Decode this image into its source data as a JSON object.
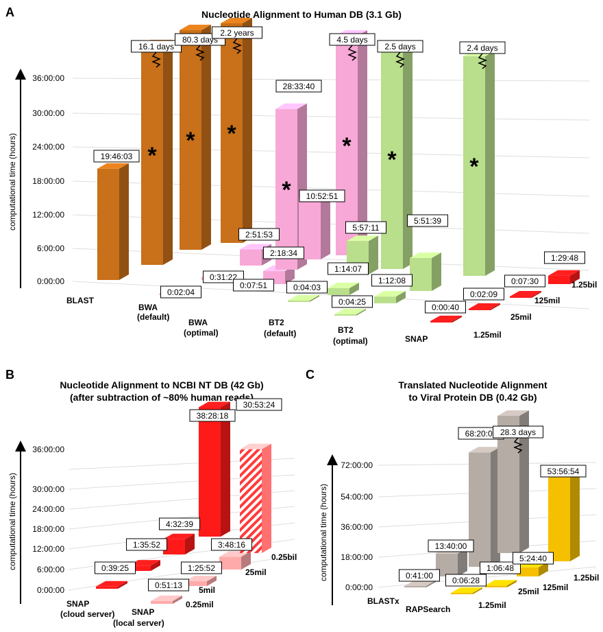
{
  "panels": [
    {
      "letter": "A",
      "title": "Nucleotide Alignment to Human DB (3.1 Gb)",
      "ylabel": "computational time (hours)",
      "yticks": [
        "0:00:00",
        "6:00:00",
        "12:00:00",
        "18:00:00",
        "24:00:00",
        "30:00:00",
        "36:00:00"
      ],
      "categories": [
        {
          "name": "BLAST",
          "sub": ""
        },
        {
          "name": "BWA",
          "sub": "(default)"
        },
        {
          "name": "BWA",
          "sub": "(optimal)"
        },
        {
          "name": "BT2",
          "sub": "(default)"
        },
        {
          "name": "BT2",
          "sub": "(optimal)"
        },
        {
          "name": "SNAP",
          "sub": ""
        }
      ],
      "depth_labels": [
        "1.25mil",
        "25mil",
        "125mil",
        "1.25bil"
      ]
    },
    {
      "letter": "B",
      "title_lines": [
        "Nucleotide Alignment to NCBI NT DB (42 Gb)",
        "(after subtraction of ~80% human reads)"
      ],
      "ylabel": "computational time (hours)",
      "yticks": [
        "0:00:00",
        "6:00:00",
        "12:00:00",
        "18:00:00",
        "24:00:00",
        "30:00:00",
        "36:00:00"
      ],
      "categories": [
        {
          "name": "SNAP",
          "sub": "(cloud server)"
        },
        {
          "name": "SNAP",
          "sub": "(local server)"
        }
      ],
      "depth_labels": [
        "0.25mil",
        "5mil",
        "25mil",
        "0.25bil"
      ]
    },
    {
      "letter": "C",
      "title_lines": [
        "Translated Nucleotide Alignment",
        "to Viral Protein DB (0.42 Gb)"
      ],
      "ylabel": "computational time (hours)",
      "yticks": [
        "0:00:00",
        "18:00:00",
        "36:00:00",
        "54:00:00",
        "72:00:00"
      ],
      "categories": [
        {
          "name": "BLASTx",
          "sub": ""
        },
        {
          "name": "RAPSearch",
          "sub": ""
        }
      ],
      "depth_labels": [
        "1.25mil",
        "25mil",
        "125mil",
        "1.25bil"
      ]
    }
  ],
  "colors": {
    "BLAST": "#c8701a",
    "BWA_default": "#f7a8d6",
    "BWA_optimal": "#f7a8d6",
    "BT2": "#f7a8d6",
    "SNAP": "#b9de8c",
    "SNAP_red": "#ff1a1a",
    "BLASTx": "#b5aca6",
    "RAPSearch": "#f5c000"
  },
  "chart_data": [
    {
      "type": "bar",
      "title": "Nucleotide Alignment to Human DB (3.1 Gb)",
      "ylabel": "computational time (hours)",
      "ylim": [
        0,
        36
      ],
      "bars": [
        {
          "method": "BLAST",
          "depth": "",
          "label": "19:46:03",
          "hours": 19.77,
          "color": "#c8701a"
        },
        {
          "method": "BWA (default)",
          "depth": "",
          "label": "16.1 days",
          "hours": 386.4,
          "broken": true,
          "star": true,
          "color": "#c8701a"
        },
        {
          "method": "BWA (optimal)",
          "depth": "",
          "label": "80.3 days",
          "hours": 1927.2,
          "broken": true,
          "star": true,
          "color": "#c8701a"
        },
        {
          "method": "BT2 (default)",
          "depth": "",
          "label": "2.2 years",
          "hours": 19272,
          "broken": true,
          "star": true,
          "color": "#c8701a"
        },
        {
          "method": "BWA (default)",
          "depth": "",
          "label": "0:02:04",
          "hours": 0.03,
          "color": "#f7a8d6"
        },
        {
          "method": "BWA (default)",
          "depth": "",
          "label": "0:31:22",
          "hours": 0.52,
          "color": "#f7a8d6"
        },
        {
          "method": "BWA (optimal)",
          "depth": "",
          "label": "0:07:51",
          "hours": 0.13,
          "color": "#f7a8d6"
        },
        {
          "method": "BWA (optimal)",
          "depth": "",
          "label": "2:51:53",
          "hours": 2.86,
          "color": "#f7a8d6"
        },
        {
          "method": "BT2 (default)",
          "depth": "",
          "label": "2:18:34",
          "hours": 2.31,
          "color": "#f7a8d6"
        },
        {
          "method": "BT2 (default)",
          "depth": "",
          "label": "28:33:40",
          "hours": 28.56,
          "star": true,
          "color": "#f7a8d6"
        },
        {
          "method": "BT2 (default)",
          "depth": "",
          "label": "10:52:51",
          "hours": 10.88,
          "color": "#f7a8d6"
        },
        {
          "method": "BT2 (optimal)",
          "depth": "",
          "label": "4.5 days",
          "hours": 108,
          "broken": true,
          "star": true,
          "color": "#f7a8d6"
        },
        {
          "method": "BT2 (default)",
          "depth": "",
          "label": "0:04:03",
          "hours": 0.07,
          "color": "#b9de8c"
        },
        {
          "method": "BT2 (optimal)",
          "depth": "",
          "label": "1:14:07",
          "hours": 1.24,
          "color": "#b9de8c"
        },
        {
          "method": "BT2 (optimal)",
          "depth": "",
          "label": "5:57:11",
          "hours": 5.95,
          "color": "#b9de8c"
        },
        {
          "method": "BT2 (optimal)",
          "depth": "",
          "label": "2.5 days",
          "hours": 60,
          "broken": true,
          "star": true,
          "color": "#b9de8c"
        },
        {
          "method": "BT2 (optimal)",
          "depth": "",
          "label": "0:04:25",
          "hours": 0.07,
          "color": "#b9de8c"
        },
        {
          "method": "BT2 (optimal)",
          "depth": "",
          "label": "1:12:08",
          "hours": 1.2,
          "color": "#b9de8c"
        },
        {
          "method": "BT2 (optimal)",
          "depth": "",
          "label": "5:51:39",
          "hours": 5.86,
          "color": "#b9de8c"
        },
        {
          "method": "BT2 (optimal)",
          "depth": "",
          "label": "2.4 days",
          "hours": 57.6,
          "broken": true,
          "star": true,
          "color": "#b9de8c"
        },
        {
          "method": "SNAP",
          "depth": "1.25mil",
          "label": "0:00:40",
          "hours": 0.01,
          "color": "#ff1a1a"
        },
        {
          "method": "SNAP",
          "depth": "25mil",
          "label": "0:02:09",
          "hours": 0.04,
          "color": "#ff1a1a"
        },
        {
          "method": "SNAP",
          "depth": "125mil",
          "label": "0:07:30",
          "hours": 0.13,
          "color": "#ff1a1a"
        },
        {
          "method": "SNAP",
          "depth": "1.25bil",
          "label": "1:29:48",
          "hours": 1.5,
          "color": "#ff1a1a"
        }
      ]
    },
    {
      "type": "bar",
      "title": "Nucleotide Alignment to NCBI NT DB (42 Gb)",
      "subtitle": "(after subtraction of ~80% human reads)",
      "ylabel": "computational time (hours)",
      "ylim": [
        0,
        36
      ],
      "bars": [
        {
          "method": "SNAP (cloud server)",
          "depth": "0.25mil",
          "label": "0:39:25",
          "hours": 0.66,
          "color": "#ff1a1a"
        },
        {
          "method": "SNAP (cloud server)",
          "depth": "5mil",
          "label": "1:35:52",
          "hours": 1.6,
          "color": "#ff1a1a"
        },
        {
          "method": "SNAP (cloud server)",
          "depth": "25mil",
          "label": "4:32:39",
          "hours": 4.54,
          "color": "#ff1a1a"
        },
        {
          "method": "SNAP (cloud server)",
          "depth": "0.25bil",
          "label": "38:28:18",
          "hours": 38.47,
          "color": "#ff1a1a"
        },
        {
          "method": "SNAP (local server)",
          "depth": "0.25mil",
          "label": "0:51:13",
          "hours": 0.85,
          "color": "#ffaaaa"
        },
        {
          "method": "SNAP (local server)",
          "depth": "5mil",
          "label": "1:25:52",
          "hours": 1.43,
          "color": "#ffaaaa"
        },
        {
          "method": "SNAP (local server)",
          "depth": "25mil",
          "label": "3:48:16",
          "hours": 3.8,
          "color": "#ffaaaa"
        },
        {
          "method": "SNAP (local server)",
          "depth": "0.25bil",
          "label": "30:53:24",
          "hours": 30.89,
          "hatched": true,
          "color": "#ff7070"
        }
      ]
    },
    {
      "type": "bar",
      "title": "Translated Nucleotide Alignment",
      "subtitle": "to Viral Protein DB (0.42 Gb)",
      "ylabel": "computational time (hours)",
      "ylim": [
        0,
        72
      ],
      "bars": [
        {
          "method": "BLASTx",
          "depth": "1.25mil",
          "label": "0:41:00",
          "hours": 0.68,
          "color": "#b5aca6"
        },
        {
          "method": "BLASTx",
          "depth": "25mil",
          "label": "13:40:00",
          "hours": 13.67,
          "color": "#b5aca6"
        },
        {
          "method": "BLASTx",
          "depth": "125mil",
          "label": "68:20:00",
          "hours": 68.33,
          "color": "#b5aca6"
        },
        {
          "method": "BLASTx",
          "depth": "1.25bil",
          "label": "28.3 days",
          "hours": 679.2,
          "broken": true,
          "color": "#b5aca6"
        },
        {
          "method": "RAPSearch",
          "depth": "1.25mil",
          "label": "0:06:28",
          "hours": 0.11,
          "color": "#f5c000"
        },
        {
          "method": "RAPSearch",
          "depth": "25mil",
          "label": "1:06:48",
          "hours": 1.11,
          "color": "#f5c000"
        },
        {
          "method": "RAPSearch",
          "depth": "125mil",
          "label": "5:24:40",
          "hours": 5.41,
          "color": "#f5c000"
        },
        {
          "method": "RAPSearch",
          "depth": "1.25bil",
          "label": "53:56:54",
          "hours": 53.95,
          "color": "#f5c000"
        }
      ]
    }
  ]
}
